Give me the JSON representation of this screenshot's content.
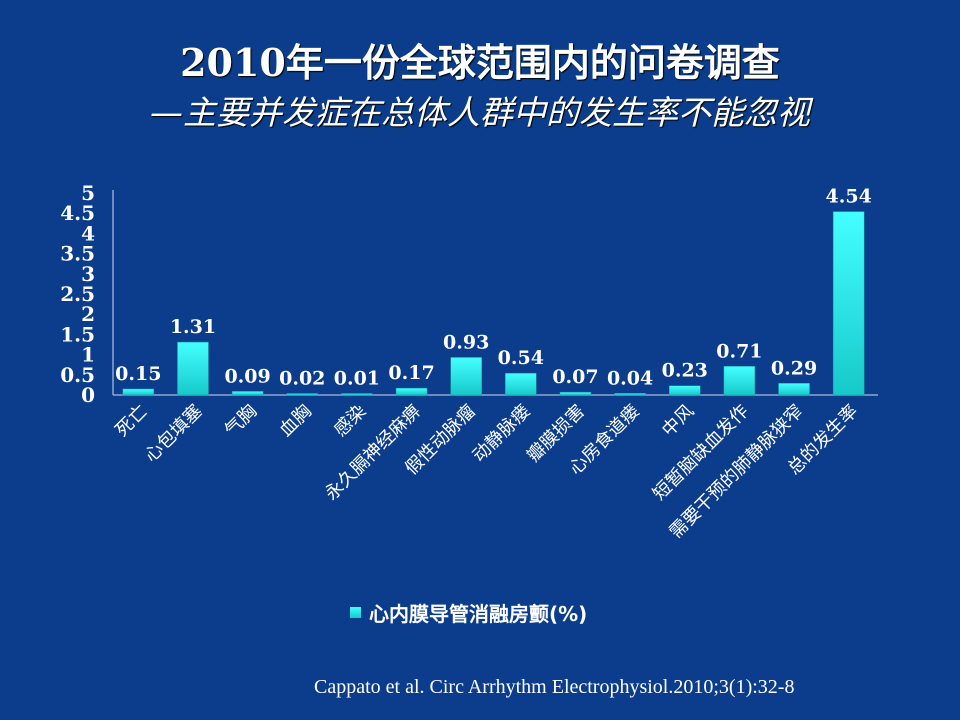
{
  "slide": {
    "title": "2010年一份全球范围内的问卷调查",
    "subtitle": "—主要并发症在总体人群中的发生率不能忽视",
    "citation": "Cappato et al. Circ Arrhythm Electrophysiol.2010;3(1):32-8"
  },
  "colors": {
    "background": "#0b3d8c",
    "bar_top": "#44ffff",
    "bar_bottom": "#17c9c9",
    "text": "#ffffff"
  },
  "chart_data": {
    "type": "bar",
    "title": "",
    "xlabel": "",
    "ylabel": "",
    "ylim": [
      0,
      5
    ],
    "yticks": [
      "0",
      "0.5",
      "1",
      "1.5",
      "2",
      "2.5",
      "3",
      "3.5",
      "4",
      "4.5",
      "5"
    ],
    "ytick_values": [
      0,
      0.5,
      1,
      1.5,
      2,
      2.5,
      3,
      3.5,
      4,
      4.5,
      5
    ],
    "grid": false,
    "legend_position": "bottom",
    "categories": [
      "死亡",
      "心包填塞",
      "气胸",
      "血胸",
      "感染",
      "永久膈神经麻痹",
      "假性动脉瘤",
      "动静脉瘘",
      "瓣膜损害",
      "心房食道瘘",
      "中风",
      "短暂脑缺血发作",
      "需要干预的肺静脉狭窄",
      "总的发生率"
    ],
    "series": [
      {
        "name": "心内膜导管消融房颤(%)",
        "values": [
          0.15,
          1.31,
          0.09,
          0.02,
          0.01,
          0.17,
          0.93,
          0.54,
          0.07,
          0.04,
          0.23,
          0.71,
          0.29,
          4.54
        ],
        "labels": [
          "0.15",
          "1.31",
          "0.09",
          "0.02",
          "0.01",
          "0.17",
          "0.93",
          "0.54",
          "0.07",
          "0.04",
          "0.23",
          "0.71",
          "0.29",
          "4.54"
        ]
      }
    ]
  }
}
